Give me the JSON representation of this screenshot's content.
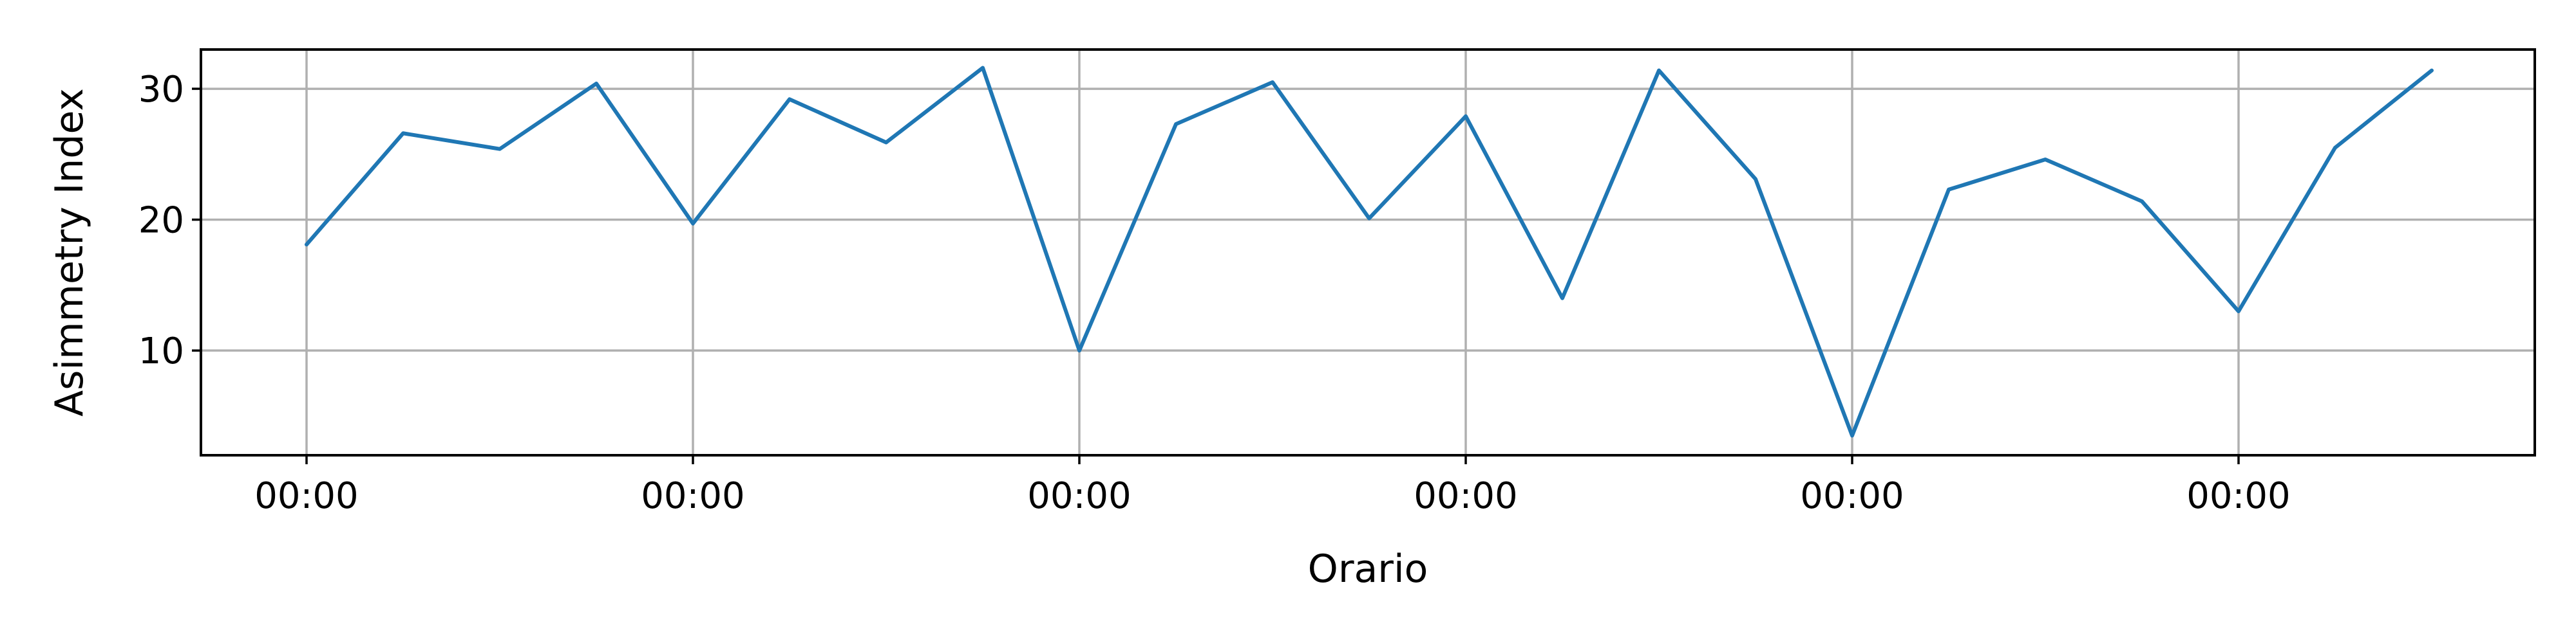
{
  "chart_data": {
    "type": "line",
    "title": "",
    "xlabel": "Orario",
    "ylabel": "Asimmetry Index",
    "x_tick_labels": [
      "00:00",
      "00:00",
      "00:00",
      "00:00",
      "00:00",
      "00:00"
    ],
    "y_ticks": [
      10,
      20,
      30
    ],
    "ylim": [
      2,
      33
    ],
    "grid": true,
    "line_color": "#1f77b4",
    "grid_color": "#b0b0b0",
    "series": [
      {
        "values": [
          18.1,
          26.6,
          25.4,
          30.4,
          19.7,
          29.2,
          25.9,
          31.6,
          10.0,
          27.3,
          30.5,
          20.1,
          27.9,
          14.0,
          31.4,
          23.1,
          3.5,
          22.3,
          24.6,
          21.4,
          13.0,
          25.5,
          31.4
        ]
      }
    ]
  }
}
